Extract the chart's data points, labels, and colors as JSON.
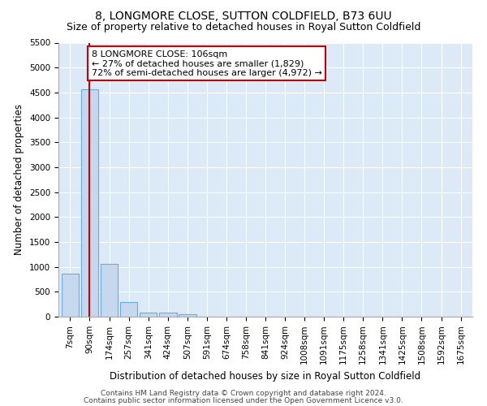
{
  "title": "8, LONGMORE CLOSE, SUTTON COLDFIELD, B73 6UU",
  "subtitle": "Size of property relative to detached houses in Royal Sutton Coldfield",
  "xlabel": "Distribution of detached houses by size in Royal Sutton Coldfield",
  "ylabel": "Number of detached properties",
  "categories": [
    "7sqm",
    "90sqm",
    "174sqm",
    "257sqm",
    "341sqm",
    "424sqm",
    "507sqm",
    "591sqm",
    "674sqm",
    "758sqm",
    "841sqm",
    "924sqm",
    "1008sqm",
    "1091sqm",
    "1175sqm",
    "1258sqm",
    "1341sqm",
    "1425sqm",
    "1508sqm",
    "1592sqm",
    "1675sqm"
  ],
  "values": [
    870,
    4570,
    1060,
    300,
    80,
    80,
    55,
    0,
    0,
    0,
    0,
    0,
    0,
    0,
    0,
    0,
    0,
    0,
    0,
    0,
    0
  ],
  "bar_color": "#c5d8ee",
  "bar_edge_color": "#6aabe8",
  "vline_x": 1.0,
  "vline_color": "#cc0000",
  "annotation_text": "8 LONGMORE CLOSE: 106sqm\n← 27% of detached houses are smaller (1,829)\n72% of semi-detached houses are larger (4,972) →",
  "annotation_box_color": "#ffffff",
  "annotation_box_edge_color": "#cc0000",
  "ylim": [
    0,
    5500
  ],
  "yticks": [
    0,
    500,
    1000,
    1500,
    2000,
    2500,
    3000,
    3500,
    4000,
    4500,
    5000,
    5500
  ],
  "plot_bg_color": "#dce9f7",
  "footer_line1": "Contains HM Land Registry data © Crown copyright and database right 2024.",
  "footer_line2": "Contains public sector information licensed under the Open Government Licence v3.0.",
  "title_fontsize": 10,
  "subtitle_fontsize": 9,
  "annotation_fontsize": 8,
  "tick_fontsize": 7.5,
  "xlabel_fontsize": 8.5,
  "ylabel_fontsize": 8.5,
  "footer_fontsize": 6.5
}
